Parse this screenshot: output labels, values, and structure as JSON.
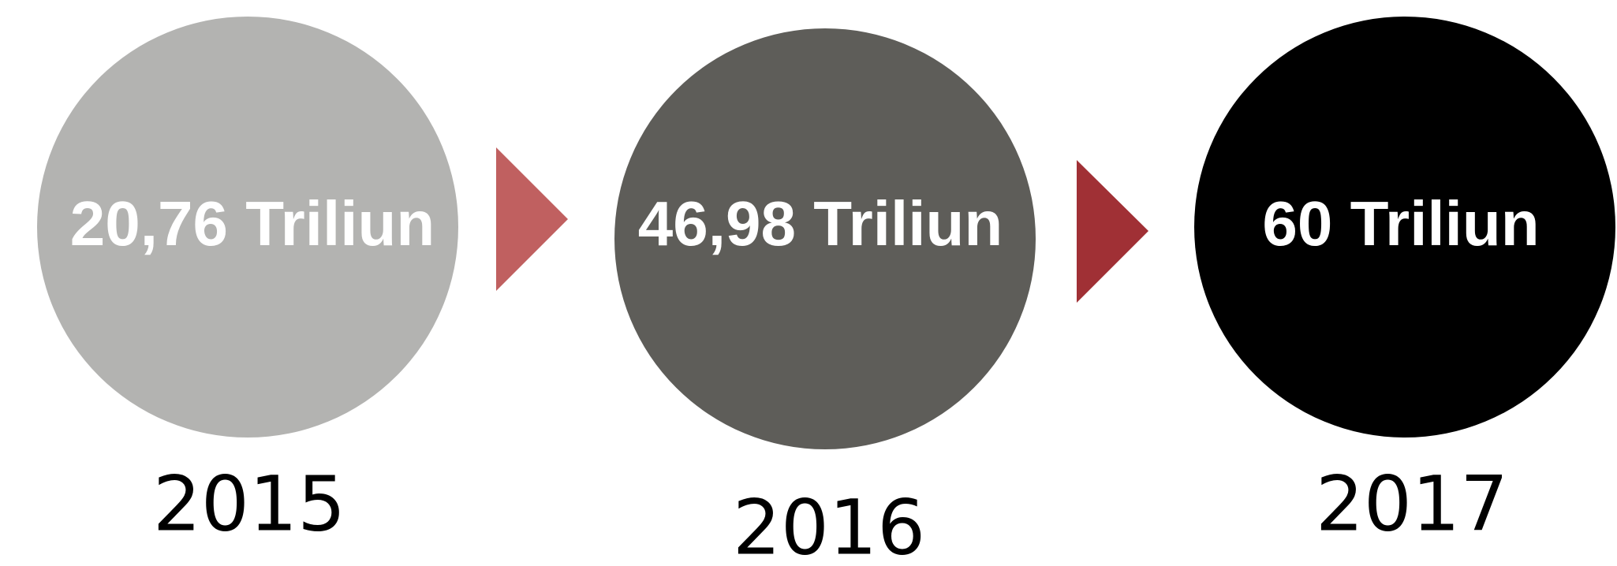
{
  "items": [
    {
      "label": "20,76 Triliun",
      "year": "2015"
    },
    {
      "label": "46,98 Triliun",
      "year": "2016"
    },
    {
      "label": "60 Triliun",
      "year": "2017"
    }
  ]
}
